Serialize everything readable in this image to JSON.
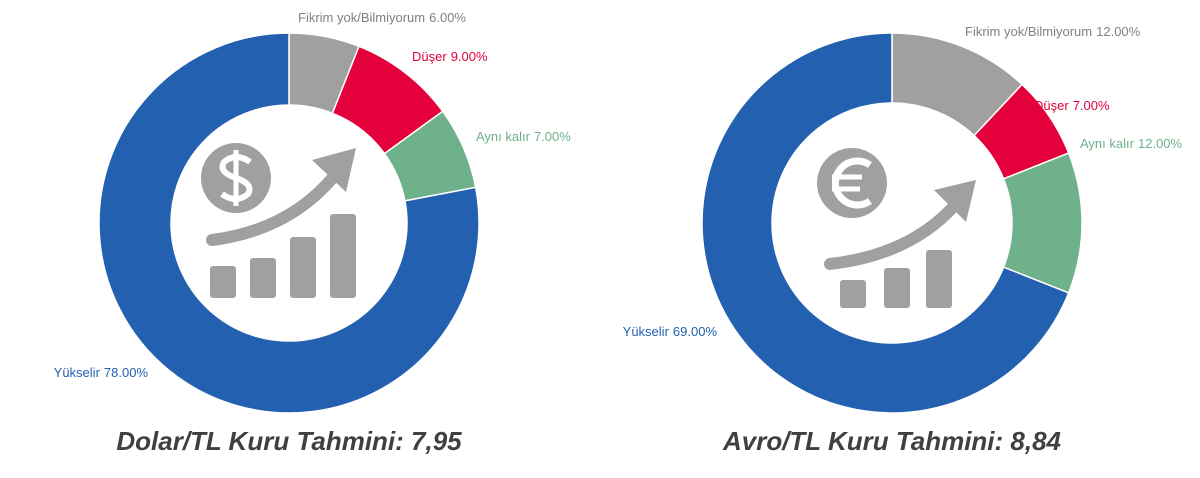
{
  "chart_data": [
    {
      "type": "donut",
      "title": "Dolar/TL Kuru Tahmini: 7,95",
      "categories": [
        "Fikrim yok/Bilmiyorum",
        "Düşer",
        "Aynı kalır",
        "Yükselir"
      ],
      "values": [
        6,
        9,
        7,
        78
      ],
      "value_labels": [
        "6.00%",
        "9.00%",
        "7.00%",
        "78.00%"
      ],
      "colors": [
        "#a0a0a0",
        "#e4003a",
        "#6fb18a",
        "#2361b0"
      ]
    },
    {
      "type": "donut",
      "title": "Avro/TL Kuru Tahmini: 8,84",
      "categories": [
        "Fikrim yok/Bilmiyorum",
        "Düşer",
        "Aynı kalır",
        "Yükselir"
      ],
      "values": [
        12,
        7,
        12,
        69
      ],
      "value_labels": [
        "12.00%",
        "7.00%",
        "12.00%",
        "69.00%"
      ],
      "colors": [
        "#a0a0a0",
        "#e4003a",
        "#6fb18a",
        "#2361b0"
      ]
    }
  ]
}
